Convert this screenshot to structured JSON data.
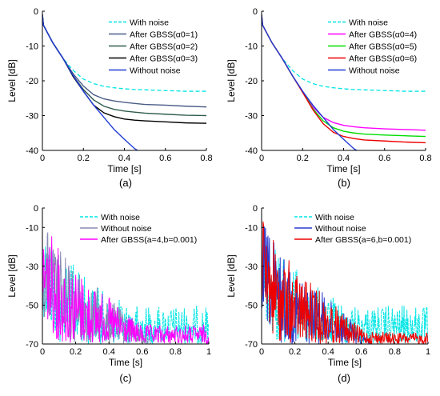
{
  "chart_data": [
    {
      "type": "line",
      "caption": "(a)",
      "xlabel": "Time [s]",
      "ylabel": "Level [dB]",
      "xlim": [
        0,
        0.8
      ],
      "ylim": [
        -40,
        0
      ],
      "xticks": [
        0,
        0.2,
        0.4,
        0.6,
        0.8
      ],
      "yticks": [
        -40,
        -30,
        -20,
        -10,
        0
      ],
      "xtick_labels": [
        "0",
        "0.2",
        "0.4",
        "0.6",
        "0.8"
      ],
      "ytick_labels": [
        "-40",
        "-30",
        "-20",
        "-10",
        "0"
      ],
      "legend_position": "top-right",
      "series": [
        {
          "name": "With noise",
          "color": "#00e5e5",
          "dash": "dashed",
          "x": [
            0,
            0.005,
            0.05,
            0.1,
            0.15,
            0.2,
            0.25,
            0.3,
            0.35,
            0.4,
            0.45,
            0.5,
            0.6,
            0.7,
            0.8
          ],
          "y": [
            -1,
            -4,
            -9,
            -13.5,
            -17,
            -19.5,
            -20.8,
            -21.6,
            -22,
            -22.3,
            -22.5,
            -22.6,
            -22.8,
            -23,
            -23
          ]
        },
        {
          "name": "After GBSS(α0=1)",
          "color": "#4a5d87",
          "dash": "solid",
          "x": [
            0,
            0.005,
            0.05,
            0.1,
            0.15,
            0.2,
            0.25,
            0.3,
            0.35,
            0.4,
            0.45,
            0.5,
            0.6,
            0.7,
            0.8
          ],
          "y": [
            -1,
            -4,
            -9,
            -13.5,
            -18,
            -21.5,
            -24,
            -25.2,
            -25.8,
            -26.2,
            -26.5,
            -26.8,
            -27,
            -27.3,
            -27.5
          ]
        },
        {
          "name": "After GBSS(α0=2)",
          "color": "#2f5c50",
          "dash": "solid",
          "x": [
            0,
            0.005,
            0.05,
            0.1,
            0.15,
            0.2,
            0.25,
            0.3,
            0.35,
            0.4,
            0.45,
            0.5,
            0.6,
            0.7,
            0.8
          ],
          "y": [
            -1,
            -4,
            -9,
            -13.5,
            -18.5,
            -22.5,
            -25.5,
            -27.3,
            -28.2,
            -28.7,
            -29,
            -29.3,
            -29.6,
            -29.9,
            -30
          ]
        },
        {
          "name": "After GBSS(α0=3)",
          "color": "#000000",
          "dash": "solid",
          "x": [
            0,
            0.005,
            0.05,
            0.1,
            0.15,
            0.2,
            0.25,
            0.3,
            0.35,
            0.4,
            0.45,
            0.5,
            0.6,
            0.7,
            0.8
          ],
          "y": [
            -1,
            -4,
            -9,
            -13.5,
            -18.8,
            -23,
            -27,
            -29.2,
            -30.3,
            -31,
            -31.3,
            -31.5,
            -31.8,
            -32.1,
            -32.2
          ]
        },
        {
          "name": "Without noise",
          "color": "#1f3cd6",
          "dash": "solid",
          "x": [
            0,
            0.005,
            0.05,
            0.1,
            0.15,
            0.2,
            0.25,
            0.3,
            0.35,
            0.4,
            0.45,
            0.47
          ],
          "y": [
            -1,
            -4,
            -9,
            -13.5,
            -18.5,
            -23,
            -27,
            -30.5,
            -34,
            -36.8,
            -39.5,
            -40.2
          ]
        }
      ]
    },
    {
      "type": "line",
      "caption": "(b)",
      "xlabel": "Time [s]",
      "ylabel": "Level [dB]",
      "xlim": [
        0,
        0.8
      ],
      "ylim": [
        -40,
        0
      ],
      "xticks": [
        0,
        0.2,
        0.4,
        0.6,
        0.8
      ],
      "yticks": [
        -40,
        -30,
        -20,
        -10,
        0
      ],
      "xtick_labels": [
        "0",
        "0.2",
        "0.4",
        "0.6",
        "0.8"
      ],
      "ytick_labels": [
        "-40",
        "-30",
        "-20",
        "-10",
        "0"
      ],
      "legend_position": "top-right",
      "series": [
        {
          "name": "With noise",
          "color": "#00e5e5",
          "dash": "dashed",
          "x": [
            0,
            0.005,
            0.05,
            0.1,
            0.15,
            0.2,
            0.25,
            0.3,
            0.35,
            0.4,
            0.45,
            0.5,
            0.6,
            0.7,
            0.8
          ],
          "y": [
            -1,
            -4,
            -9,
            -13.5,
            -17,
            -19.5,
            -20.8,
            -21.6,
            -22,
            -22.3,
            -22.5,
            -22.6,
            -22.8,
            -23,
            -23
          ]
        },
        {
          "name": "After GBSS(α0=4)",
          "color": "#ff00ff",
          "dash": "solid",
          "x": [
            0,
            0.005,
            0.05,
            0.1,
            0.15,
            0.2,
            0.25,
            0.3,
            0.35,
            0.4,
            0.45,
            0.5,
            0.6,
            0.7,
            0.8
          ],
          "y": [
            -1,
            -4,
            -9,
            -13.5,
            -18.5,
            -23,
            -27.5,
            -30.5,
            -32,
            -32.8,
            -33.2,
            -33.5,
            -33.8,
            -34,
            -34.2
          ]
        },
        {
          "name": "After GBSS(α0=5)",
          "color": "#00dd00",
          "dash": "solid",
          "x": [
            0,
            0.005,
            0.05,
            0.1,
            0.15,
            0.2,
            0.25,
            0.3,
            0.35,
            0.4,
            0.45,
            0.5,
            0.6,
            0.7,
            0.8
          ],
          "y": [
            -1,
            -4,
            -9,
            -13.5,
            -18.5,
            -23.2,
            -28,
            -31.5,
            -33.5,
            -34.5,
            -35,
            -35.3,
            -35.6,
            -35.8,
            -36
          ]
        },
        {
          "name": "After GBSS(α0=6)",
          "color": "#ee0000",
          "dash": "solid",
          "x": [
            0,
            0.005,
            0.05,
            0.1,
            0.15,
            0.2,
            0.25,
            0.3,
            0.35,
            0.4,
            0.45,
            0.5,
            0.6,
            0.7,
            0.8
          ],
          "y": [
            -1,
            -4,
            -9,
            -13.5,
            -18.5,
            -23.3,
            -28.3,
            -32.3,
            -34.8,
            -36,
            -36.6,
            -37,
            -37.3,
            -37.6,
            -37.8
          ]
        },
        {
          "name": "Without noise",
          "color": "#1f3cd6",
          "dash": "solid",
          "x": [
            0,
            0.005,
            0.05,
            0.1,
            0.15,
            0.2,
            0.25,
            0.3,
            0.35,
            0.4,
            0.45,
            0.47
          ],
          "y": [
            -1,
            -4,
            -9,
            -13.5,
            -18.5,
            -23,
            -27,
            -30.5,
            -34,
            -36.8,
            -39.5,
            -40.2
          ]
        }
      ]
    },
    {
      "type": "line",
      "caption": "(c)",
      "xlabel": "Time [s]",
      "ylabel": "Level [dB]",
      "xlim": [
        0,
        1
      ],
      "ylim": [
        -70,
        0
      ],
      "xticks": [
        0,
        0.2,
        0.4,
        0.6,
        0.8,
        1
      ],
      "yticks": [
        -70,
        -50,
        -30,
        -10,
        0
      ],
      "xtick_labels": [
        "0",
        "0.2",
        "0.4",
        "0.6",
        "0.8",
        "1"
      ],
      "ytick_labels": [
        "-70",
        "-50",
        "-30",
        "-10",
        "0"
      ],
      "legend_position": "top-right",
      "series": [
        {
          "name": "With noise",
          "color": "#00e5e5",
          "dash": "dashed",
          "envelope": {
            "x": [
              0,
              0.1,
              0.2,
              0.3,
              0.4,
              0.5,
              0.6,
              1
            ],
            "upper": [
              -5,
              -20,
              -30,
              -38,
              -45,
              -48,
              -50,
              -50
            ],
            "lower": [
              -55,
              -70,
              -70,
              -70,
              -70,
              -70,
              -70,
              -70
            ]
          }
        },
        {
          "name": "Without noise",
          "color": "#8a8ab8",
          "dash": "solid",
          "envelope": {
            "x": [
              0,
              0.1,
              0.2,
              0.3,
              0.4,
              0.5,
              0.6,
              0.65
            ],
            "upper": [
              -5,
              -20,
              -30,
              -38,
              -46,
              -54,
              -62,
              -68
            ],
            "lower": [
              -55,
              -70,
              -70,
              -70,
              -70,
              -70,
              -70,
              -70
            ]
          }
        },
        {
          "name": "After GBSS(a=4,b=0.001)",
          "color": "#ff00ff",
          "dash": "solid",
          "envelope": {
            "x": [
              0,
              0.1,
              0.2,
              0.3,
              0.4,
              0.5,
              0.6,
              0.8,
              1
            ],
            "upper": [
              -5,
              -20,
              -30,
              -38,
              -46,
              -54,
              -60,
              -60,
              -60
            ],
            "lower": [
              -55,
              -70,
              -70,
              -70,
              -70,
              -70,
              -70,
              -70,
              -70
            ]
          }
        }
      ]
    },
    {
      "type": "line",
      "caption": "(d)",
      "xlabel": "Time [s]",
      "ylabel": "Level [dB]",
      "xlim": [
        0,
        1
      ],
      "ylim": [
        -70,
        0
      ],
      "xticks": [
        0,
        0.2,
        0.4,
        0.6,
        0.8,
        1
      ],
      "yticks": [
        -70,
        -50,
        -30,
        -10,
        0
      ],
      "xtick_labels": [
        "0",
        "0.2",
        "0.4",
        "0.6",
        "0.8",
        "1"
      ],
      "ytick_labels": [
        "-70",
        "-50",
        "-30",
        "-10",
        "0"
      ],
      "legend_position": "top-right",
      "series": [
        {
          "name": "With noise",
          "color": "#00e5e5",
          "dash": "dashed",
          "envelope": {
            "x": [
              0,
              0.1,
              0.2,
              0.3,
              0.4,
              0.5,
              0.6,
              1
            ],
            "upper": [
              -5,
              -20,
              -30,
              -38,
              -45,
              -48,
              -50,
              -50
            ],
            "lower": [
              -55,
              -70,
              -70,
              -70,
              -70,
              -70,
              -70,
              -70
            ]
          }
        },
        {
          "name": "Without noise",
          "color": "#2a3ccf",
          "dash": "solid",
          "envelope": {
            "x": [
              0,
              0.1,
              0.2,
              0.3,
              0.4,
              0.5,
              0.6,
              0.65
            ],
            "upper": [
              -5,
              -20,
              -30,
              -38,
              -46,
              -54,
              -62,
              -68
            ],
            "lower": [
              -55,
              -70,
              -70,
              -70,
              -70,
              -70,
              -70,
              -70
            ]
          }
        },
        {
          "name": "After GBSS(a=6,b=0.001)",
          "color": "#ee0000",
          "dash": "solid",
          "envelope": {
            "x": [
              0,
              0.1,
              0.2,
              0.3,
              0.4,
              0.5,
              0.6,
              0.8,
              1
            ],
            "upper": [
              -5,
              -20,
              -30,
              -38,
              -46,
              -54,
              -62,
              -64,
              -64
            ],
            "lower": [
              -55,
              -70,
              -70,
              -70,
              -70,
              -70,
              -70,
              -70,
              -70
            ]
          }
        }
      ]
    }
  ]
}
